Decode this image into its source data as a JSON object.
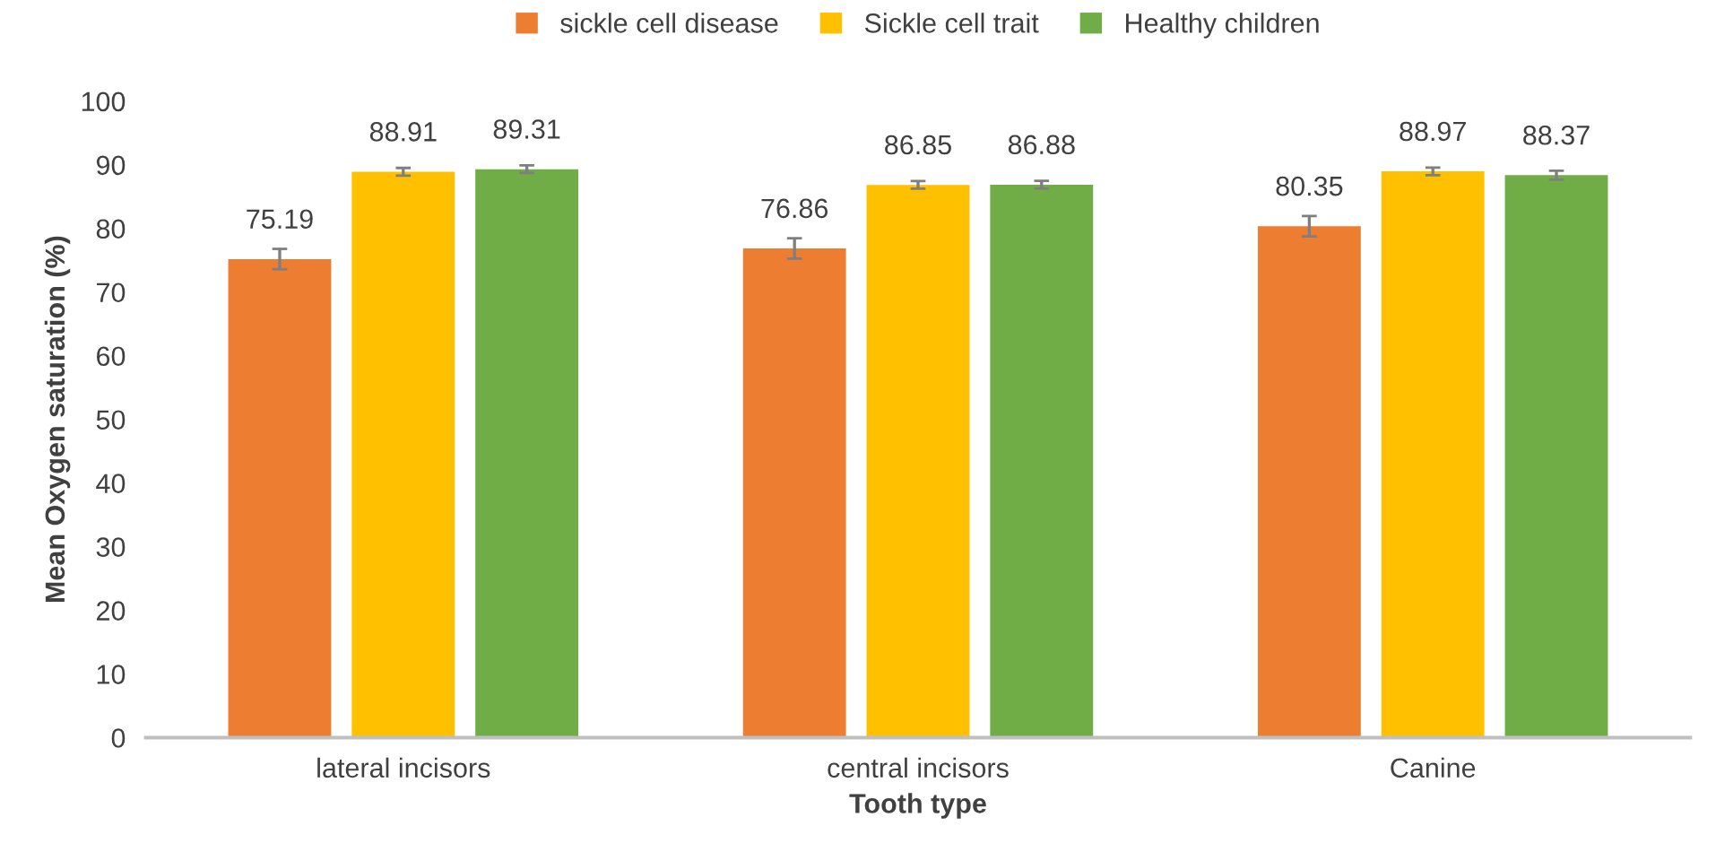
{
  "chart_data": {
    "type": "bar",
    "xlabel": "Tooth type",
    "ylabel": "Mean Oxygen saturation (%)",
    "categories": [
      "lateral incisors",
      "central incisors",
      "Canine"
    ],
    "series": [
      {
        "name": "sickle cell disease",
        "color": "#ed7d31",
        "values": [
          75.19,
          76.86,
          80.35
        ],
        "errors": [
          1.6,
          1.6,
          1.6
        ]
      },
      {
        "name": "Sickle cell trait",
        "color": "#ffc000",
        "values": [
          88.91,
          86.85,
          88.97
        ],
        "errors": [
          0.6,
          0.6,
          0.6
        ]
      },
      {
        "name": "Healthy children",
        "color": "#70ad47",
        "values": [
          89.31,
          86.88,
          88.37
        ],
        "errors": [
          0.6,
          0.6,
          0.7
        ]
      }
    ],
    "ylim": [
      0,
      100
    ],
    "yticks": [
      0,
      10,
      20,
      30,
      40,
      50,
      60,
      70,
      80,
      90,
      100
    ],
    "data_labels": true,
    "legend": "top",
    "grid": false
  }
}
